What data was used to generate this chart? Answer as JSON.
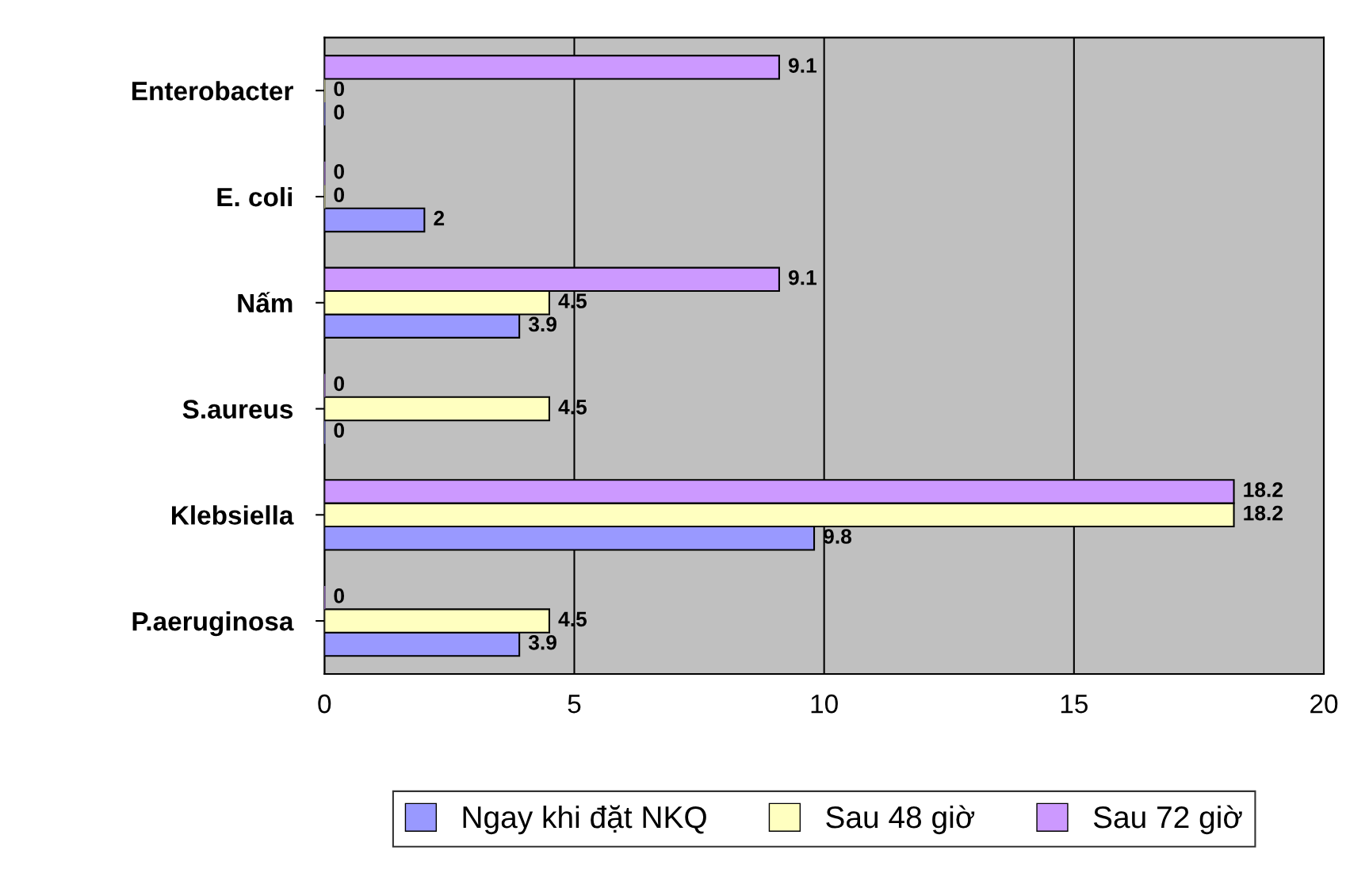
{
  "chart_data": {
    "type": "bar",
    "orientation": "horizontal",
    "categories": [
      "Enterobacter",
      "E. coli",
      "Nấm",
      "S.aureus",
      "Klebsiella",
      "P.aeruginosa"
    ],
    "series": [
      {
        "name": "Ngay khi đặt NKQ",
        "color": "#9999ff",
        "values": [
          0,
          2,
          3.9,
          0,
          9.8,
          3.9
        ]
      },
      {
        "name": "Sau 48 giờ",
        "color": "#ffffc0",
        "values": [
          0,
          0,
          4.5,
          4.5,
          18.2,
          4.5
        ]
      },
      {
        "name": "Sau 72 giờ",
        "color": "#cc99ff",
        "values": [
          9.1,
          0,
          9.1,
          0,
          18.2,
          0
        ]
      }
    ],
    "xlim": [
      0,
      20
    ],
    "xticks": [
      0,
      5,
      10,
      15,
      20
    ],
    "grid": "x",
    "legend": "bottom",
    "data_labels": true
  }
}
